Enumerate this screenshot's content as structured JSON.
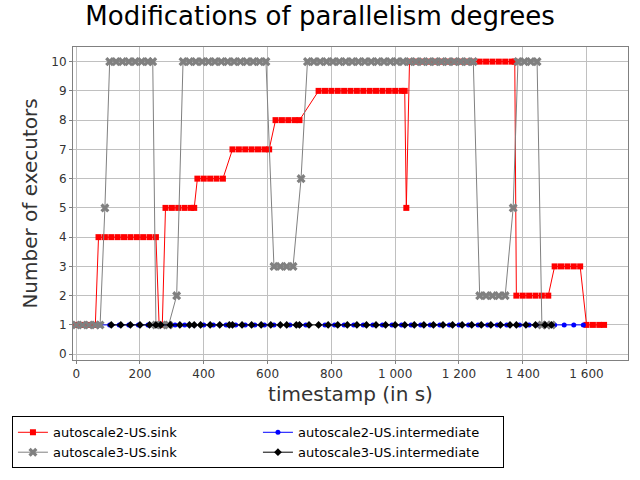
{
  "chart_data": {
    "type": "line",
    "title": "Modifications of parallelism degrees",
    "x_label": "timestamp (in s)",
    "y_label": "Number of executors",
    "xlim": [
      -10,
      1730
    ],
    "ylim": [
      -0.2,
      10.5
    ],
    "xticks": [
      0,
      200,
      400,
      600,
      800,
      {
        "value": 1000,
        "label": "1 000"
      },
      {
        "value": 1200,
        "label": "1 200"
      },
      {
        "value": 1400,
        "label": "1 400"
      },
      {
        "value": 1600,
        "label": "1 600"
      }
    ],
    "yticks": [
      0,
      1,
      2,
      3,
      4,
      5,
      6,
      7,
      8,
      9,
      10
    ],
    "grid": true,
    "legend": "bottom",
    "series": [
      {
        "name": "autoscale2-US.sink",
        "color": "#ff0000",
        "marker": "square",
        "line_style": "solid",
        "x": [
          0,
          20,
          40,
          60,
          70,
          90,
          110,
          130,
          150,
          170,
          190,
          210,
          230,
          250,
          260,
          270,
          280,
          300,
          320,
          340,
          360,
          370,
          380,
          400,
          420,
          440,
          460,
          490,
          510,
          530,
          550,
          570,
          590,
          605,
          625,
          645,
          665,
          685,
          700,
          760,
          780,
          800,
          820,
          840,
          860,
          880,
          900,
          920,
          940,
          960,
          980,
          1000,
          1020,
          1030,
          1035,
          1045,
          1065,
          1085,
          1105,
          1125,
          1145,
          1165,
          1185,
          1205,
          1225,
          1245,
          1265,
          1285,
          1305,
          1325,
          1345,
          1365,
          1375,
          1380,
          1400,
          1420,
          1440,
          1460,
          1480,
          1500,
          1520,
          1540,
          1560,
          1580,
          1600,
          1620,
          1640,
          1655
        ],
        "values": [
          1,
          1,
          1,
          1,
          4,
          4,
          4,
          4,
          4,
          4,
          4,
          4,
          4,
          4,
          1,
          1,
          5,
          5,
          5,
          5,
          5,
          5,
          6,
          6,
          6,
          6,
          6,
          7,
          7,
          7,
          7,
          7,
          7,
          7,
          8,
          8,
          8,
          8,
          8,
          9,
          9,
          9,
          9,
          9,
          9,
          9,
          9,
          9,
          9,
          9,
          9,
          9,
          9,
          9,
          5,
          10,
          10,
          10,
          10,
          10,
          10,
          10,
          10,
          10,
          10,
          10,
          10,
          10,
          10,
          10,
          10,
          10,
          10,
          2,
          2,
          2,
          2,
          2,
          2,
          3,
          3,
          3,
          3,
          3,
          1,
          1,
          1,
          1
        ]
      },
      {
        "name": "autoscale2-US.intermediate",
        "color": "#0000ff",
        "marker": "circle",
        "line_style": "solid",
        "x": [
          75,
          105,
          135,
          165,
          195,
          225,
          250,
          265,
          280,
          310,
          340,
          370,
          385,
          400,
          430,
          470,
          485,
          500,
          530,
          560,
          590,
          620,
          645,
          670,
          700,
          720,
          750,
          780,
          810,
          840,
          870,
          900,
          930,
          960,
          990,
          1020,
          1050,
          1080,
          1110,
          1140,
          1170,
          1200,
          1230,
          1260,
          1290,
          1320,
          1350,
          1365,
          1390,
          1420,
          1450,
          1480,
          1490,
          1500,
          1530,
          1560,
          1590
        ],
        "values": [
          1,
          1,
          1,
          1,
          1,
          1,
          1,
          null,
          1,
          1,
          1,
          1,
          null,
          1,
          1,
          1,
          null,
          1,
          1,
          1,
          1,
          1,
          null,
          1,
          1,
          1,
          null,
          1,
          1,
          1,
          1,
          1,
          1,
          1,
          1,
          1,
          1,
          1,
          1,
          1,
          1,
          1,
          1,
          1,
          1,
          1,
          1,
          null,
          1,
          1,
          1,
          1,
          null,
          1,
          1,
          1,
          1
        ]
      },
      {
        "name": "autoscale3-US.sink",
        "color": "#808080",
        "marker": "x",
        "line_style": "solid",
        "x": [
          0,
          20,
          40,
          60,
          75,
          90,
          105,
          125,
          145,
          165,
          185,
          205,
          225,
          240,
          250,
          270,
          290,
          315,
          335,
          355,
          375,
          395,
          415,
          435,
          455,
          475,
          495,
          515,
          535,
          555,
          575,
          595,
          620,
          640,
          660,
          680,
          705,
          725,
          745,
          765,
          785,
          805,
          825,
          845,
          865,
          885,
          905,
          925,
          945,
          965,
          985,
          1005,
          1025,
          1045,
          1065,
          1085,
          1105,
          1125,
          1145,
          1165,
          1185,
          1205,
          1225,
          1245,
          1265,
          1285,
          1305,
          1325,
          1345,
          1370,
          1385,
          1405,
          1425,
          1445,
          1460,
          1475,
          1490
        ],
        "values": [
          1,
          1,
          1,
          1,
          1,
          5,
          10,
          10,
          10,
          10,
          10,
          10,
          10,
          10,
          1,
          1,
          1,
          2,
          10,
          10,
          10,
          10,
          10,
          10,
          10,
          10,
          10,
          10,
          10,
          10,
          10,
          10,
          3,
          3,
          3,
          3,
          6,
          10,
          10,
          10,
          10,
          10,
          10,
          10,
          10,
          10,
          10,
          10,
          10,
          10,
          10,
          10,
          10,
          10,
          10,
          10,
          10,
          10,
          10,
          10,
          10,
          10,
          10,
          10,
          2,
          2,
          2,
          2,
          2,
          5,
          10,
          10,
          10,
          10,
          1,
          1,
          1
        ]
      },
      {
        "name": "autoscale3-US.intermediate",
        "color": "#000000",
        "marker": "diamond",
        "line_style": "solid",
        "x": [
          110,
          140,
          170,
          200,
          230,
          250,
          255,
          265,
          295,
          325,
          355,
          370,
          380,
          390,
          420,
          450,
          480,
          485,
          490,
          520,
          550,
          580,
          610,
          640,
          650,
          660,
          690,
          695,
          700,
          730,
          760,
          790,
          820,
          850,
          880,
          910,
          940,
          970,
          1000,
          1030,
          1060,
          1090,
          1120,
          1150,
          1180,
          1210,
          1240,
          1270,
          1300,
          1330,
          1360,
          1370,
          1380,
          1410,
          1440,
          1470,
          1490
        ],
        "values": [
          1,
          1,
          1,
          1,
          1,
          1,
          null,
          1,
          1,
          1,
          1,
          1,
          null,
          1,
          1,
          1,
          1,
          null,
          1,
          1,
          1,
          1,
          1,
          1,
          null,
          1,
          1,
          null,
          1,
          1,
          1,
          1,
          1,
          1,
          1,
          1,
          1,
          1,
          1,
          1,
          1,
          1,
          1,
          1,
          1,
          1,
          1,
          1,
          1,
          1,
          1,
          null,
          1,
          1,
          1,
          1,
          1
        ]
      }
    ]
  }
}
